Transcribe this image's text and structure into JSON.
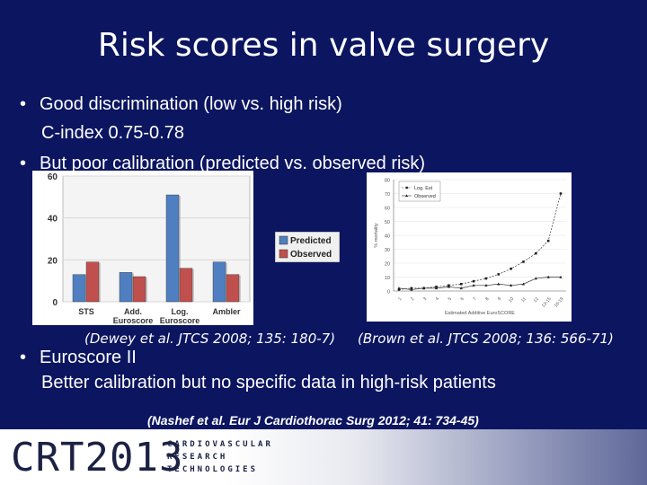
{
  "slide": {
    "title": "Risk scores in valve surgery",
    "bullets": [
      {
        "text": "Good discrimination (low vs. high risk)",
        "sub": "C-index 0.75-0.78"
      },
      {
        "text": "But poor calibration (predicted vs. observed risk)"
      },
      {
        "text": "Euroscore II",
        "sub": "Better calibration but no specific data in high-risk patients"
      }
    ],
    "citations": {
      "left": "(Dewey et al. JTCS 2008; 135: 180-7)",
      "right": "(Brown et al. JTCS 2008; 136: 566-71)",
      "bottom": "(Nashef et al. Eur J Cardiothorac Surg 2012; 41: 734-45)"
    },
    "footer": {
      "logo_main": "CRT",
      "logo_year": "2013",
      "lines": [
        "CARDIOVASCULAR",
        "RESEARCH",
        "TECHNOLOGIES"
      ]
    }
  },
  "colors": {
    "background": "#0b1560",
    "predicted": "#4f7fc0",
    "observed": "#c0504d"
  },
  "chart_data": [
    {
      "type": "bar",
      "categories": [
        "STS",
        "Add. Euroscore",
        "Log. Euroscore",
        "Ambler"
      ],
      "category_lines": [
        [
          "STS"
        ],
        [
          "Add.",
          "Euroscore"
        ],
        [
          "Log.",
          "Euroscore"
        ],
        [
          "Ambler"
        ]
      ],
      "series": [
        {
          "name": "Predicted",
          "values": [
            13,
            14,
            51,
            19
          ],
          "color": "#4f7fc0"
        },
        {
          "name": "Observed",
          "values": [
            19,
            12,
            16,
            13
          ],
          "color": "#c0504d"
        }
      ],
      "ylim": [
        0,
        60
      ],
      "yticks": [
        "0",
        "20",
        "40",
        "60"
      ],
      "legend": "right"
    },
    {
      "type": "line",
      "xlabel": "Estimated Additive EuroSCORE",
      "ylabel": "% mortality",
      "x": [
        "1",
        "2",
        "3",
        "4",
        "5",
        "6",
        "7",
        "8",
        "9",
        "10",
        "11",
        "12",
        "13-15",
        "16-19"
      ],
      "series": [
        {
          "name": "Log. Est",
          "values": [
            1,
            2,
            2,
            3,
            4,
            5,
            7,
            9,
            12,
            16,
            21,
            27,
            36,
            70
          ]
        },
        {
          "name": "Observed",
          "values": [
            2,
            1,
            2,
            2,
            3,
            2,
            4,
            4,
            5,
            4,
            5,
            9,
            10,
            10
          ]
        }
      ],
      "ylim": [
        0,
        80
      ],
      "yticks": [
        "0",
        "10",
        "20",
        "30",
        "40",
        "50",
        "60",
        "70",
        "80"
      ],
      "legend": "top-left"
    }
  ]
}
